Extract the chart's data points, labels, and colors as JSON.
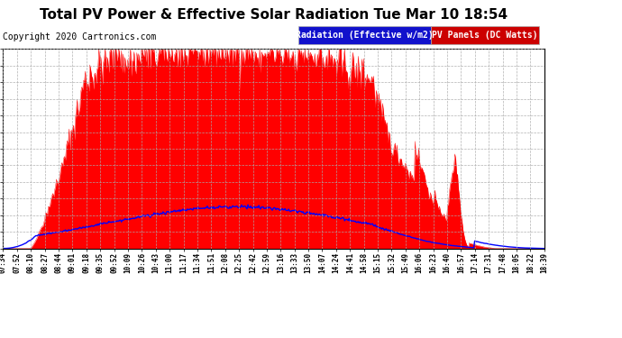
{
  "title": "Total PV Power & Effective Solar Radiation Tue Mar 10 18:54",
  "copyright": "Copyright 2020 Cartronics.com",
  "legend_blue": "Radiation (Effective w/m2)",
  "legend_red": "PV Panels (DC Watts)",
  "y_ticks": [
    0.0,
    283.8,
    567.5,
    851.3,
    1135.0,
    1418.8,
    1702.5,
    1986.3,
    2270.1,
    2553.8,
    2837.6,
    3121.3,
    3405.1
  ],
  "y_max": 3405.1,
  "x_labels": [
    "07:34",
    "07:52",
    "08:10",
    "08:27",
    "08:44",
    "09:01",
    "09:18",
    "09:35",
    "09:52",
    "10:09",
    "10:26",
    "10:43",
    "11:00",
    "11:17",
    "11:34",
    "11:51",
    "12:08",
    "12:25",
    "12:42",
    "12:59",
    "13:16",
    "13:33",
    "13:50",
    "14:07",
    "14:24",
    "14:41",
    "14:58",
    "15:15",
    "15:32",
    "15:49",
    "16:06",
    "16:23",
    "16:40",
    "16:57",
    "17:14",
    "17:31",
    "17:48",
    "18:05",
    "18:22",
    "18:39"
  ],
  "bg_color": "#ffffff",
  "grid_color": "#aaaaaa",
  "red_color": "#ff0000",
  "blue_color": "#0000ff",
  "title_color": "#000000",
  "title_fontsize": 11,
  "copyright_fontsize": 7,
  "legend_fontsize": 7
}
